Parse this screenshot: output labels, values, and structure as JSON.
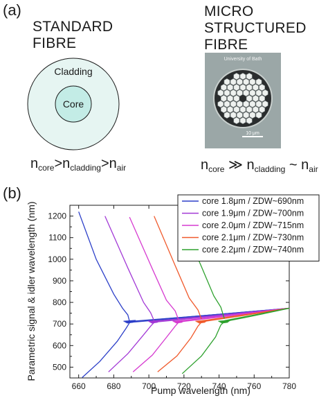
{
  "panel_a": {
    "label": "(a)",
    "standard": {
      "title_line1": "STANDARD",
      "title_line2": "FIBRE",
      "cladding": "Cladding",
      "core": "Core"
    },
    "micro": {
      "title_line1": "MICRO",
      "title_line2": "STRUCTURED",
      "title_line3": "FIBRE",
      "photo_caption": "University of Bath",
      "scale_bar": "10 μm"
    },
    "eq1": {
      "n1": "n",
      "s1": "core",
      "op1": ">",
      "n2": "n",
      "s2": "cladding",
      "op2": ">",
      "n3": "n",
      "s3": "air"
    },
    "eq2": {
      "n1": "n",
      "s1": "core",
      "op1": " ≫ ",
      "n2": "n",
      "s2": "cladding",
      "op2": " ~ ",
      "n3": "n",
      "s3": "air"
    },
    "colors": {
      "cladding": "#e6f5f2",
      "core": "#c3ece6",
      "ring": "#1a1a1a"
    }
  },
  "panel_b": {
    "label": "(b)"
  },
  "chart_data": {
    "type": "line",
    "xlabel": "Pump wavelength (nm)",
    "ylabel": "Parametric signal & idler wavelength (nm)",
    "xlim": [
      655,
      780
    ],
    "ylim": [
      450,
      1250
    ],
    "xticks": [
      660,
      680,
      700,
      720,
      740,
      760,
      780
    ],
    "yticks": [
      500,
      600,
      700,
      800,
      900,
      1000,
      1100,
      1200
    ],
    "legend_position": "top-right",
    "series": [
      {
        "name": "core 1.8μm / ZDW~690nm",
        "color": "#2b3ec8",
        "zdw": 689,
        "signal": [
          [
            660,
            1220
          ],
          [
            670,
            1000
          ],
          [
            680,
            838
          ],
          [
            685,
            773
          ],
          [
            688,
            742
          ],
          [
            689,
            712
          ]
        ],
        "idler": [
          [
            662,
            452
          ],
          [
            672,
            526
          ],
          [
            682,
            620
          ],
          [
            687,
            680
          ],
          [
            689,
            706
          ]
        ]
      },
      {
        "name": "core 1.9μm / ZDW~700nm",
        "color": "#a238d6",
        "zdw": 703,
        "signal": [
          [
            675,
            1200
          ],
          [
            688,
            960
          ],
          [
            697,
            800
          ],
          [
            701,
            752
          ],
          [
            703,
            715
          ]
        ],
        "idler": [
          [
            677,
            478
          ],
          [
            688,
            562
          ],
          [
            697,
            650
          ],
          [
            701,
            690
          ],
          [
            703,
            707
          ]
        ]
      },
      {
        "name": "core 2.0μm / ZDW~715nm",
        "color": "#d63ad0",
        "zdw": 717,
        "signal": [
          [
            689,
            1195
          ],
          [
            702,
            955
          ],
          [
            710,
            810
          ],
          [
            715,
            760
          ],
          [
            717,
            718
          ]
        ],
        "idler": [
          [
            691,
            478
          ],
          [
            702,
            556
          ],
          [
            710,
            638
          ],
          [
            715,
            690
          ],
          [
            717,
            708
          ]
        ]
      },
      {
        "name": "core 2.1μm / ZDW~730nm",
        "color": "#f05a2c",
        "zdw": 730,
        "signal": [
          [
            703,
            1200
          ],
          [
            715,
            970
          ],
          [
            723,
            820
          ],
          [
            728,
            765
          ],
          [
            730,
            722
          ]
        ],
        "idler": [
          [
            705,
            478
          ],
          [
            716,
            552
          ],
          [
            724,
            636
          ],
          [
            728,
            690
          ],
          [
            730,
            709
          ]
        ]
      },
      {
        "name": "core 2.2μm / ZDW~740nm",
        "color": "#2da12d",
        "zdw": 743,
        "signal": [
          [
            717,
            1210
          ],
          [
            730,
            965
          ],
          [
            737,
            830
          ],
          [
            741,
            778
          ],
          [
            743,
            725
          ]
        ],
        "idler": [
          [
            719,
            470
          ],
          [
            730,
            552
          ],
          [
            738,
            640
          ],
          [
            741,
            695
          ],
          [
            743,
            711
          ]
        ]
      }
    ]
  }
}
